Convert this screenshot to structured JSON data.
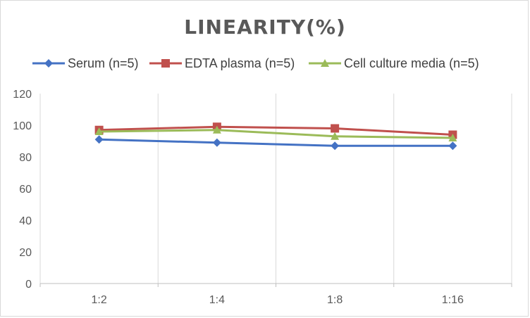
{
  "chart_data": {
    "type": "line",
    "title": "LINEARITY(%)",
    "xlabel": "",
    "ylabel": "",
    "categories": [
      "1:2",
      "1:4",
      "1:8",
      "1:16"
    ],
    "ylim": [
      0,
      120
    ],
    "yticks": [
      0,
      20,
      40,
      60,
      80,
      100,
      120
    ],
    "grid": "vertical",
    "legend_position": "top",
    "series": [
      {
        "name": "Serum (n=5)",
        "values": [
          91,
          89,
          87,
          87
        ],
        "color": "#4472c4",
        "marker": "diamond"
      },
      {
        "name": "EDTA plasma (n=5)",
        "values": [
          97,
          99,
          98,
          94
        ],
        "color": "#c0504d",
        "marker": "square"
      },
      {
        "name": "Cell culture media (n=5)",
        "values": [
          96,
          97,
          93,
          92
        ],
        "color": "#9bbb59",
        "marker": "triangle"
      }
    ]
  }
}
